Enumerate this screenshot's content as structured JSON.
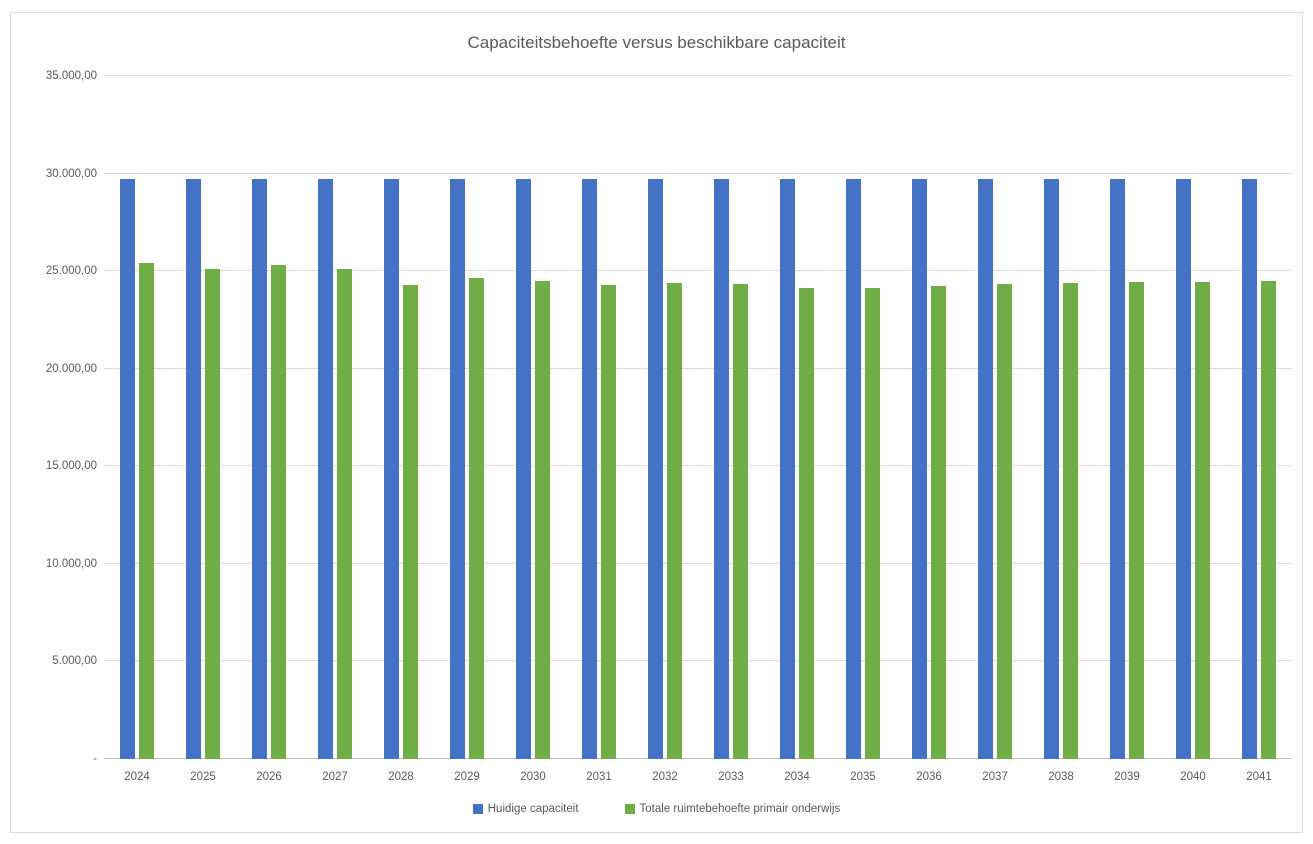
{
  "chart_data": {
    "type": "bar",
    "title": "Capaciteitsbehoefte versus beschikbare capaciteit",
    "categories": [
      "2024",
      "2025",
      "2026",
      "2027",
      "2028",
      "2029",
      "2030",
      "2031",
      "2032",
      "2033",
      "2034",
      "2035",
      "2036",
      "2037",
      "2038",
      "2039",
      "2040",
      "2041"
    ],
    "series": [
      {
        "name": "Huidige capaciteit",
        "color": "#4472C4",
        "values": [
          29700,
          29700,
          29700,
          29700,
          29700,
          29700,
          29700,
          29700,
          29700,
          29700,
          29700,
          29700,
          29700,
          29700,
          29700,
          29700,
          29700,
          29700
        ]
      },
      {
        "name": "Totale ruimtebehoefte primair onderwijs",
        "color": "#70AD47",
        "values": [
          25400,
          25100,
          25300,
          25100,
          24300,
          24650,
          24500,
          24300,
          24400,
          24350,
          24150,
          24150,
          24250,
          24350,
          24400,
          24450,
          24450,
          24500
        ]
      }
    ],
    "ylim": [
      0,
      35000
    ],
    "y_tick_interval": 5000,
    "y_tick_labels": [
      "-",
      "5.000,00",
      "10.000,00",
      "15.000,00",
      "20.000,00",
      "25.000,00",
      "30.000,00",
      "35.000,00"
    ],
    "grid": true,
    "legend_position": "bottom",
    "colors": {
      "text": "#595959",
      "gridline": "#D9D9D9",
      "axis_line": "#BFBFBF",
      "frame_border": "#D9D9D9",
      "background": "#FFFFFF"
    }
  }
}
